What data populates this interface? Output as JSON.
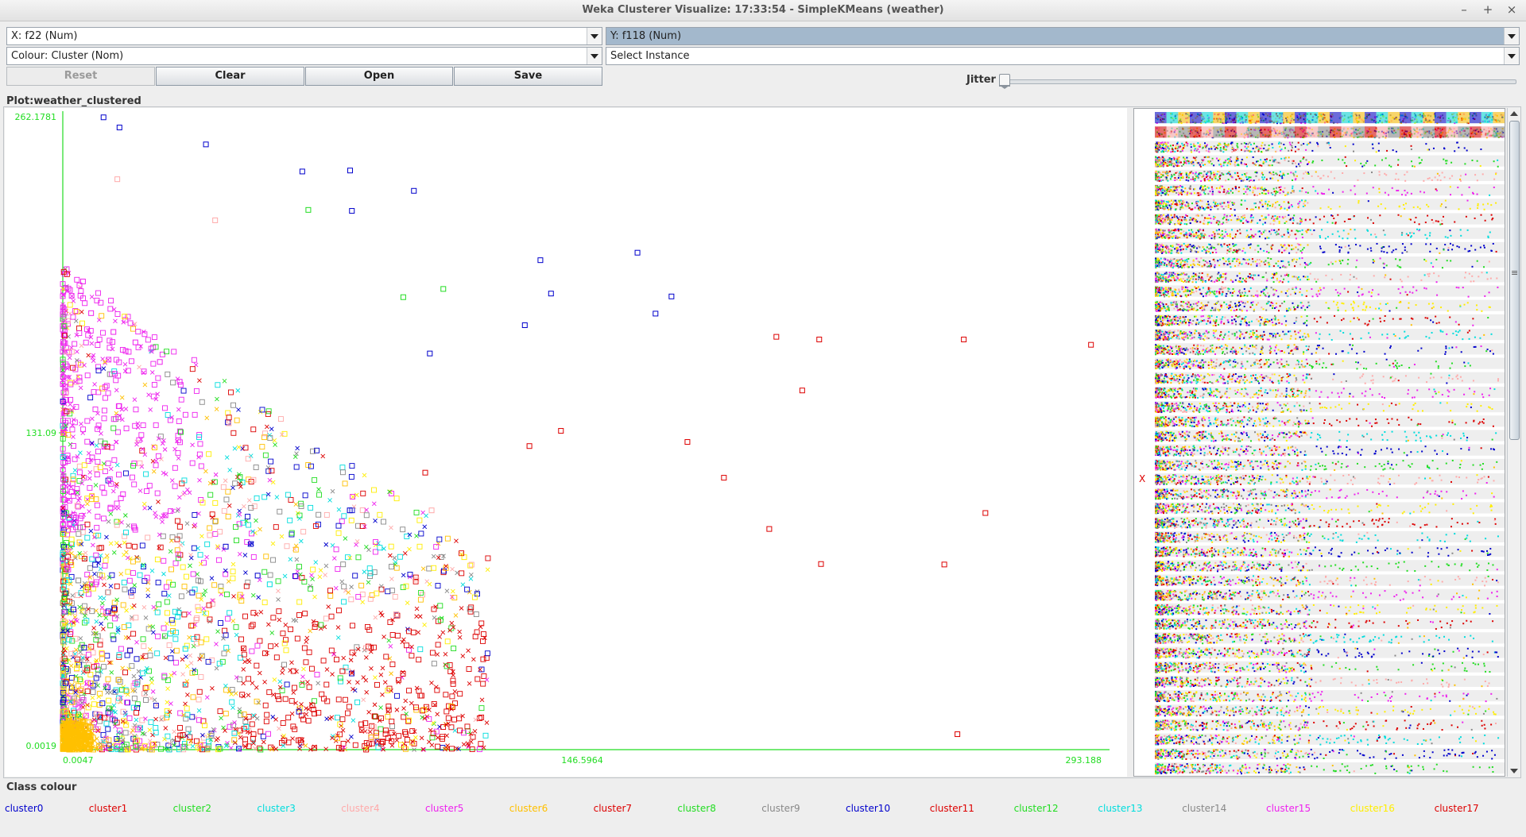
{
  "window": {
    "title": "Weka Clusterer Visualize: 17:33:54 - SimpleKMeans (weather)",
    "controls": [
      "–",
      "+",
      "×"
    ]
  },
  "controls": {
    "x_axis": "X: f22 (Num)",
    "y_axis": "Y: f118 (Num)",
    "colour": "Colour: Cluster (Nom)",
    "select_instance": "Select Instance",
    "buttons": {
      "reset": "Reset",
      "clear": "Clear",
      "open": "Open",
      "save": "Save"
    },
    "jitter_label": "Jitter",
    "jitter_value": 0
  },
  "plot": {
    "title": "Plot:weather_clustered",
    "side_marker": "X"
  },
  "chart_data": {
    "type": "scatter",
    "xlabel": "f22",
    "ylabel": "f118",
    "xlim": [
      0.0047,
      293.188
    ],
    "ylim": [
      0.0019,
      262.1781
    ],
    "x_tick_labels": [
      "0.0047",
      "146.5964",
      "293.188"
    ],
    "y_tick_labels": [
      "262.1781",
      "131.09",
      "0.0019"
    ],
    "legend_title": "Class colour",
    "legend_position": "bottom",
    "series_colors": {
      "cluster0": "#0000cc",
      "cluster1": "#dd0000",
      "cluster2": "#22dd22",
      "cluster3": "#00dddd",
      "cluster4": "#ffaaaa",
      "cluster5": "#ee22ee",
      "cluster6": "#ffc000",
      "cluster7": "#dd0000",
      "cluster8": "#22dd22",
      "cluster9": "#888888",
      "cluster10": "#0000cc",
      "cluster11": "#dd0000",
      "cluster12": "#22dd22",
      "cluster13": "#00dddd",
      "cluster14": "#888888",
      "cluster15": "#ee22ee",
      "cluster16": "#ffee00",
      "cluster17": "#dd0000"
    },
    "clusters": [
      "cluster0",
      "cluster1",
      "cluster2",
      "cluster3",
      "cluster4",
      "cluster5",
      "cluster6",
      "cluster7",
      "cluster8",
      "cluster9",
      "cluster10",
      "cluster11",
      "cluster12",
      "cluster13",
      "cluster14",
      "cluster15",
      "cluster16",
      "cluster17"
    ],
    "series": [
      {
        "name": "cluster0",
        "x": [
          11.5,
          16.0,
          40.4,
          67.6,
          81.1,
          81.6,
          99.1,
          134.8,
          162.2,
          171.8,
          137.8,
          130.4,
          167.3,
          103.6
        ],
        "y": [
          261.6,
          257.4,
          250.4,
          239.2,
          239.6,
          222.9,
          231.2,
          202.5,
          205.6,
          187.5,
          188.7,
          175.6,
          180.4,
          163.9
        ]
      },
      {
        "name": "cluster1",
        "x": [
          290.2,
          213.5,
          201.4,
          254.3,
          208.7,
          140.6,
          176.3,
          186.6,
          199.4,
          260.4,
          248.8,
          214.0,
          252.5,
          131.7,
          102.3
        ],
        "y": [
          167.5,
          169.7,
          170.8,
          169.7,
          148.6,
          131.9,
          127.3,
          112.5,
          91.3,
          97.9,
          76.6,
          76.8,
          6.4,
          125.6,
          114.6
        ]
      },
      {
        "name": "cluster2",
        "x": [
          69.3,
          107.4,
          96.1,
          33.3,
          50.0
        ],
        "y": [
          223.3,
          190.6,
          187.2,
          131.4,
          112.8
        ]
      },
      {
        "name": "cluster3",
        "x": [
          30.3,
          34.6,
          58.4,
          51.8
        ],
        "y": [
          48.0,
          41.7,
          68.4,
          9.4
        ]
      },
      {
        "name": "cluster4",
        "x": [
          15.4,
          43.0,
          94.1,
          85.6,
          104.1
        ],
        "y": [
          236.0,
          219.0,
          56.0,
          42.0,
          99.0
        ]
      },
      {
        "name": "cluster5",
        "x": [
          5.7,
          8.0,
          14.3,
          20.5,
          27.4,
          33.0,
          8.3,
          17.0
        ],
        "y": [
          193.7,
          180.6,
          172.8,
          168.5,
          160.4,
          152.2,
          120.9,
          105.7
        ]
      },
      {
        "name": "cluster6",
        "x": [
          1.2,
          2.7,
          5.0,
          3.8
        ],
        "y": [
          6.0,
          12.6,
          24.5,
          4.1
        ]
      },
      {
        "name": "cluster9",
        "x": [
          4.4,
          9.9,
          21.1
        ],
        "y": [
          70.0,
          47.0,
          28.0
        ]
      },
      {
        "name": "cluster10",
        "x": [
          3.0,
          19.0,
          46.0,
          81.0,
          55.0
        ],
        "y": [
          58.0,
          41.0,
          84.0,
          99.0,
          72.0
        ]
      },
      {
        "name": "cluster16",
        "x": [
          2.5,
          6.5,
          11.0
        ],
        "y": [
          87.0,
          66.0,
          40.0
        ]
      }
    ]
  }
}
